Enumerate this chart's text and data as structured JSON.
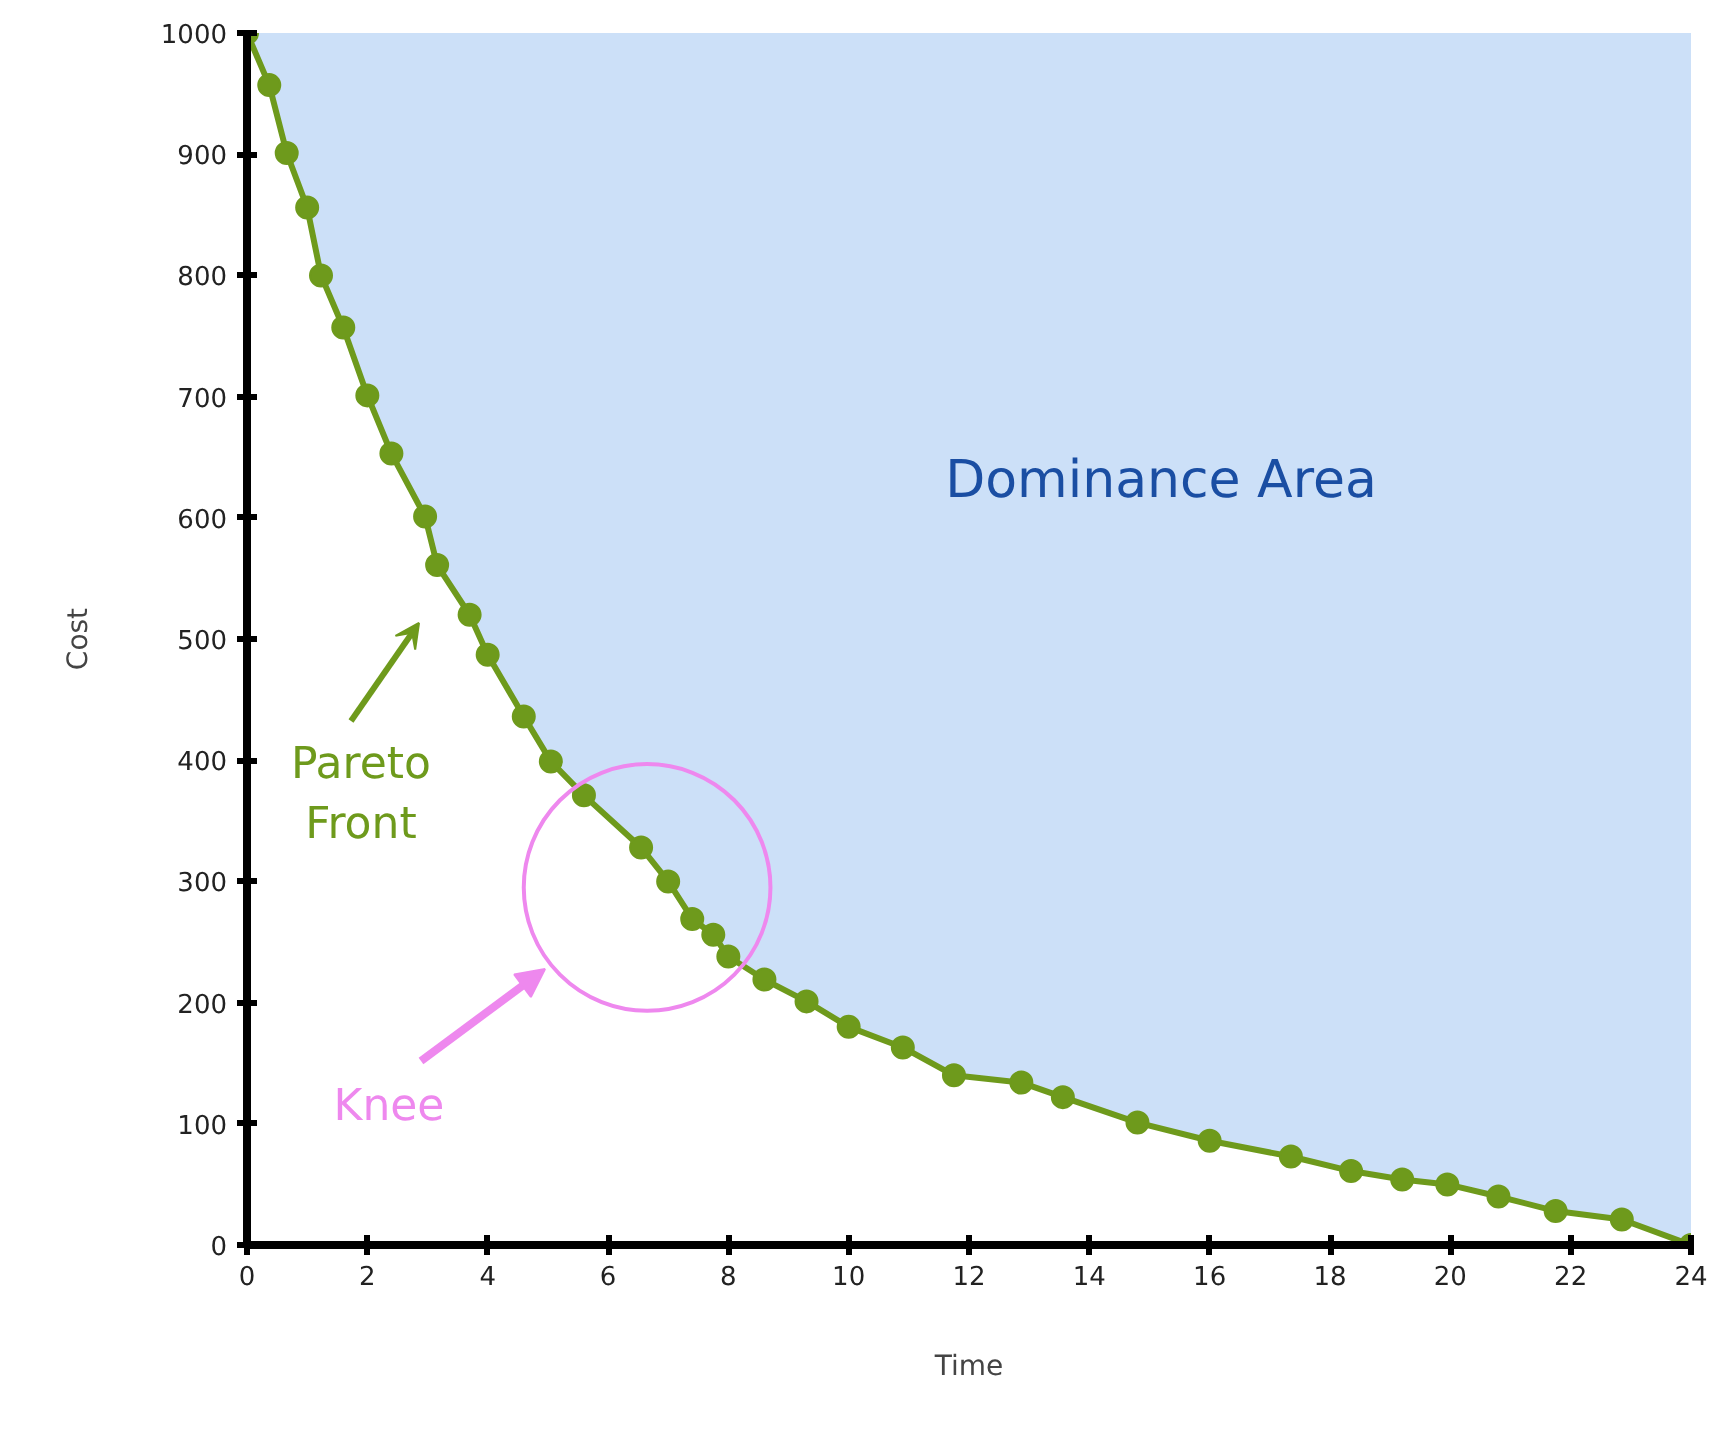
{
  "chart_data": {
    "type": "line",
    "xlabel": "Time",
    "ylabel": "Cost",
    "x": [
      0,
      0.37,
      0.66,
      1.0,
      1.23,
      1.6,
      2.0,
      2.4,
      2.96,
      3.16,
      3.7,
      4.0,
      4.6,
      5.05,
      5.6,
      6.55,
      7.0,
      7.4,
      7.75,
      8.0,
      8.6,
      9.3,
      10.0,
      10.9,
      11.75,
      12.87,
      13.56,
      14.8,
      16.0,
      17.35,
      18.35,
      19.2,
      19.95,
      20.8,
      21.75,
      22.85,
      24
    ],
    "series": [
      {
        "color": "#6e9a1c",
        "values": [
          1000,
          957,
          901,
          856,
          800,
          757,
          701,
          653,
          601,
          561,
          520,
          487,
          436,
          399,
          371,
          328,
          300,
          269,
          256,
          238,
          219,
          201,
          180,
          163,
          140,
          134,
          122,
          101,
          86,
          73,
          61,
          54,
          50,
          40,
          28,
          21,
          0
        ],
        "lower": [
          1000,
          957,
          901,
          856,
          800,
          757,
          701,
          653,
          601,
          561,
          520,
          487,
          436,
          399,
          371,
          328,
          300,
          269,
          256,
          238,
          219,
          201,
          180,
          163,
          140,
          134,
          122,
          101,
          86,
          73,
          61,
          54,
          50,
          40,
          28,
          21,
          0
        ],
        "upper": [
          1000,
          1000,
          1000,
          1000,
          1000,
          1000,
          1000,
          1000,
          1000,
          1000,
          1000,
          1000,
          1000,
          1000,
          1000,
          1000,
          1000,
          1000,
          1000,
          1000,
          1000,
          1000,
          1000,
          1000,
          1000,
          1000,
          1000,
          1000,
          1000,
          1000,
          1000,
          1000,
          1000,
          1000,
          1000,
          1000,
          1000
        ]
      }
    ],
    "xlim": [
      0,
      24
    ],
    "xticks": [
      0,
      2,
      4,
      6,
      8,
      10,
      12,
      14,
      16,
      18,
      20,
      22,
      24
    ],
    "ylim": [
      0,
      1000
    ],
    "yticks": [
      0,
      100,
      200,
      300,
      400,
      500,
      600,
      700,
      800,
      900,
      1000
    ],
    "grid": false,
    "marker": "circle",
    "line_style": "solid",
    "annotations": [
      "Dominance Area",
      "Pareto Front",
      "Knee"
    ]
  }
}
